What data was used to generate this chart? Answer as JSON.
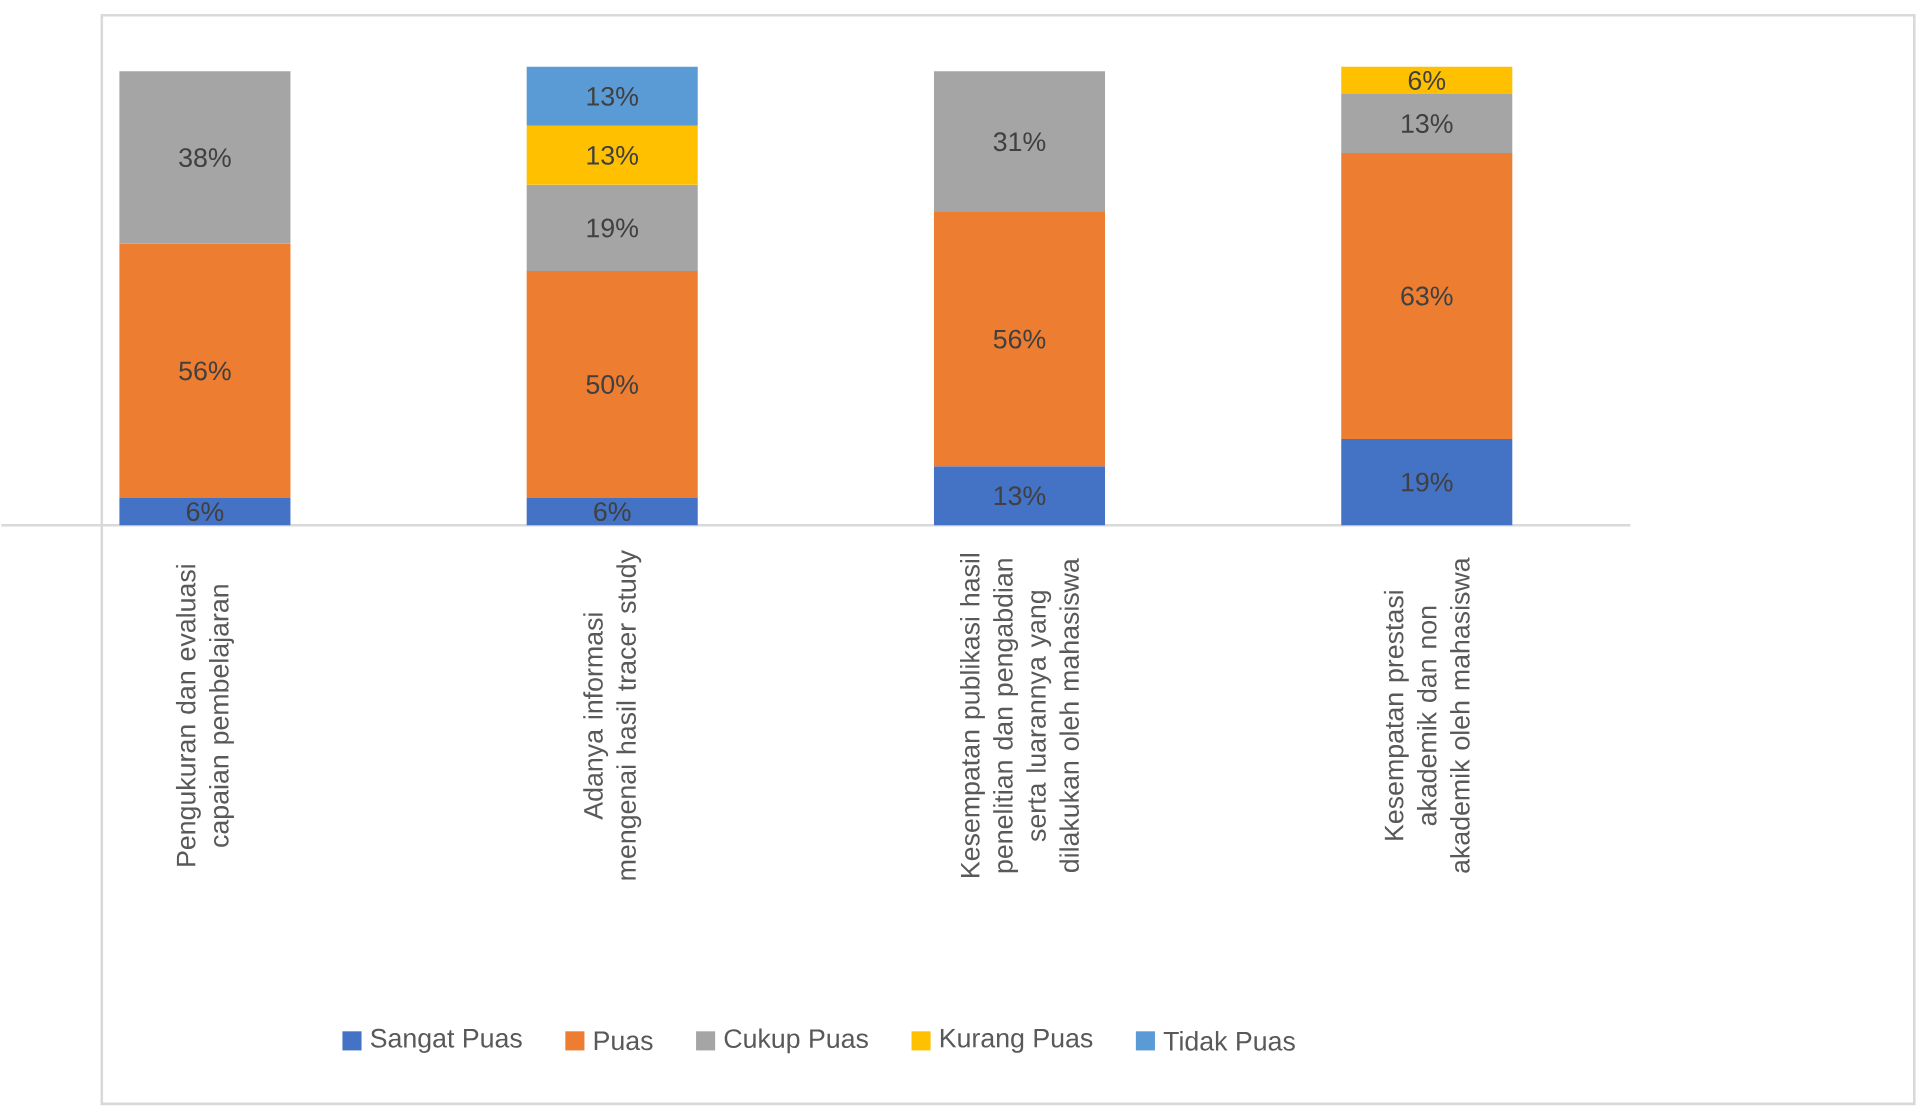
{
  "chart_data": {
    "type": "bar",
    "stacked": true,
    "legend": "bottom",
    "ylim": [
      0,
      101
    ],
    "categories": [
      "Pengukuran dan evaluasi capaian pembelajaran",
      "Adanya informasi mengenai hasil tracer study",
      "Kesempatan publikasi hasil penelitian dan pengabdian serta luarannya yang dilakukan oleh mahasiswa",
      "Kesempatan prestasi akademik dan non akademik oleh mahasiswa"
    ],
    "series": [
      {
        "name": "Sangat Puas",
        "color": "#4472c4",
        "values": [
          6,
          6,
          13,
          19
        ],
        "value_labels": [
          "6%",
          "6%",
          "13%",
          "19%"
        ]
      },
      {
        "name": "Puas",
        "color": "#ed7d31",
        "values": [
          56,
          50,
          56,
          63
        ],
        "value_labels": [
          "56%",
          "50%",
          "56%",
          "63%"
        ]
      },
      {
        "name": "Cukup Puas",
        "color": "#a5a5a5",
        "values": [
          38,
          19,
          31,
          13
        ],
        "value_labels": [
          "38%",
          "19%",
          "31%",
          "13%"
        ]
      },
      {
        "name": "Kurang Puas",
        "color": "#ffc000",
        "values": [
          null,
          13,
          null,
          6
        ],
        "value_labels": [
          null,
          "13%",
          null,
          "6%"
        ]
      },
      {
        "name": "Tidak Puas",
        "color": "#5b9bd5",
        "values": [
          null,
          13,
          null,
          null
        ],
        "value_labels": [
          null,
          "13%",
          null,
          null
        ]
      }
    ]
  }
}
